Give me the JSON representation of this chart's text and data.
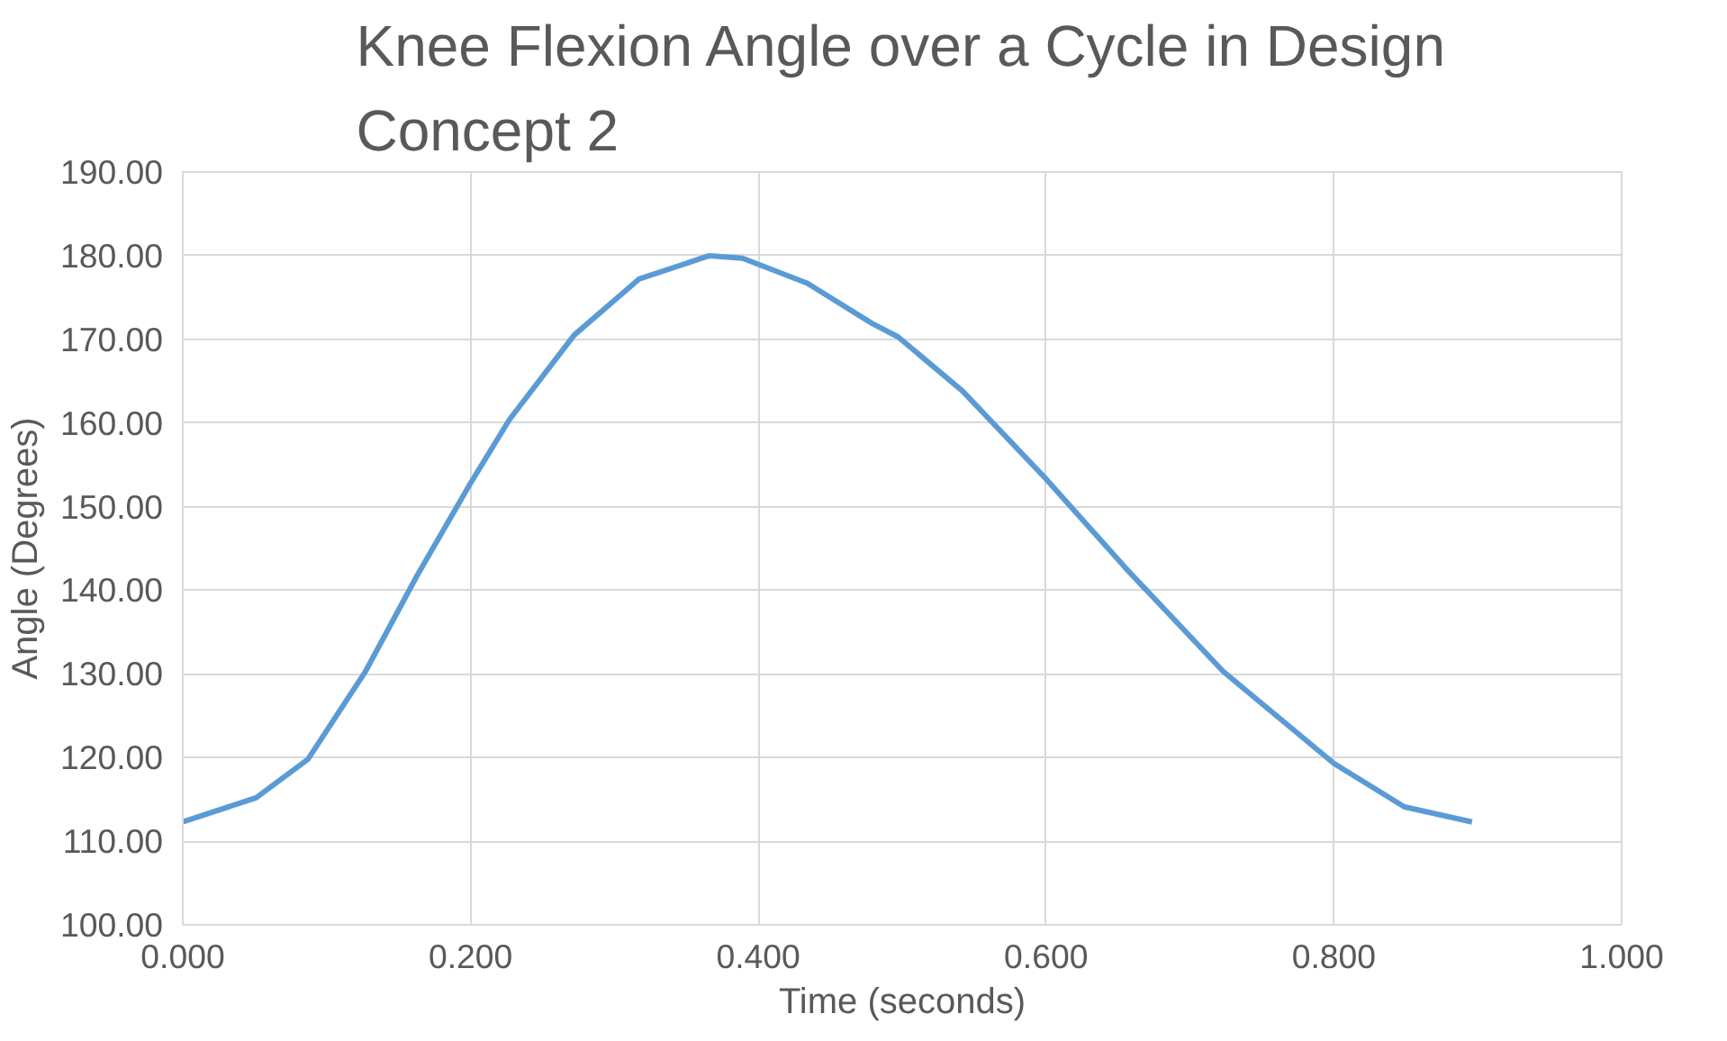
{
  "chart_data": {
    "type": "line",
    "title": "Knee Flexion Angle over a Cycle in Design Concept 2",
    "xlabel": "Time (seconds)",
    "ylabel": "Angle (Degrees)",
    "x": [
      0,
      0.051,
      0.087,
      0.127,
      0.163,
      0.2,
      0.227,
      0.272,
      0.317,
      0.366,
      0.389,
      0.434,
      0.479,
      0.497,
      0.542,
      0.6,
      0.655,
      0.723,
      0.8,
      0.849,
      0.896
    ],
    "series": [
      {
        "color": "#5b9bd5",
        "values": [
          112.3,
          115.2,
          119.8,
          130.3,
          141.8,
          152.8,
          160.4,
          170.5,
          177.2,
          180.0,
          179.7,
          176.7,
          171.9,
          170.3,
          163.8,
          153.3,
          142.7,
          130.3,
          119.3,
          114.1,
          112.3
        ]
      }
    ],
    "xlim": [
      0,
      1
    ],
    "xticks": [
      {
        "value": 0,
        "label": "0.000"
      },
      {
        "value": 0.2,
        "label": "0.200"
      },
      {
        "value": 0.4,
        "label": "0.400"
      },
      {
        "value": 0.6,
        "label": "0.600"
      },
      {
        "value": 0.8,
        "label": "0.800"
      },
      {
        "value": 1,
        "label": "1.000"
      }
    ],
    "ylim": [
      100,
      190
    ],
    "yticks": [
      {
        "value": 100,
        "label": "100.00"
      },
      {
        "value": 110,
        "label": "110.00"
      },
      {
        "value": 120,
        "label": "120.00"
      },
      {
        "value": 130,
        "label": "130.00"
      },
      {
        "value": 140,
        "label": "140.00"
      },
      {
        "value": 150,
        "label": "150.00"
      },
      {
        "value": 160,
        "label": "160.00"
      },
      {
        "value": 170,
        "label": "170.00"
      },
      {
        "value": 180,
        "label": "180.00"
      },
      {
        "value": 190,
        "label": "190.00"
      }
    ],
    "grid": true,
    "marker": "none",
    "line_style": "solid"
  }
}
